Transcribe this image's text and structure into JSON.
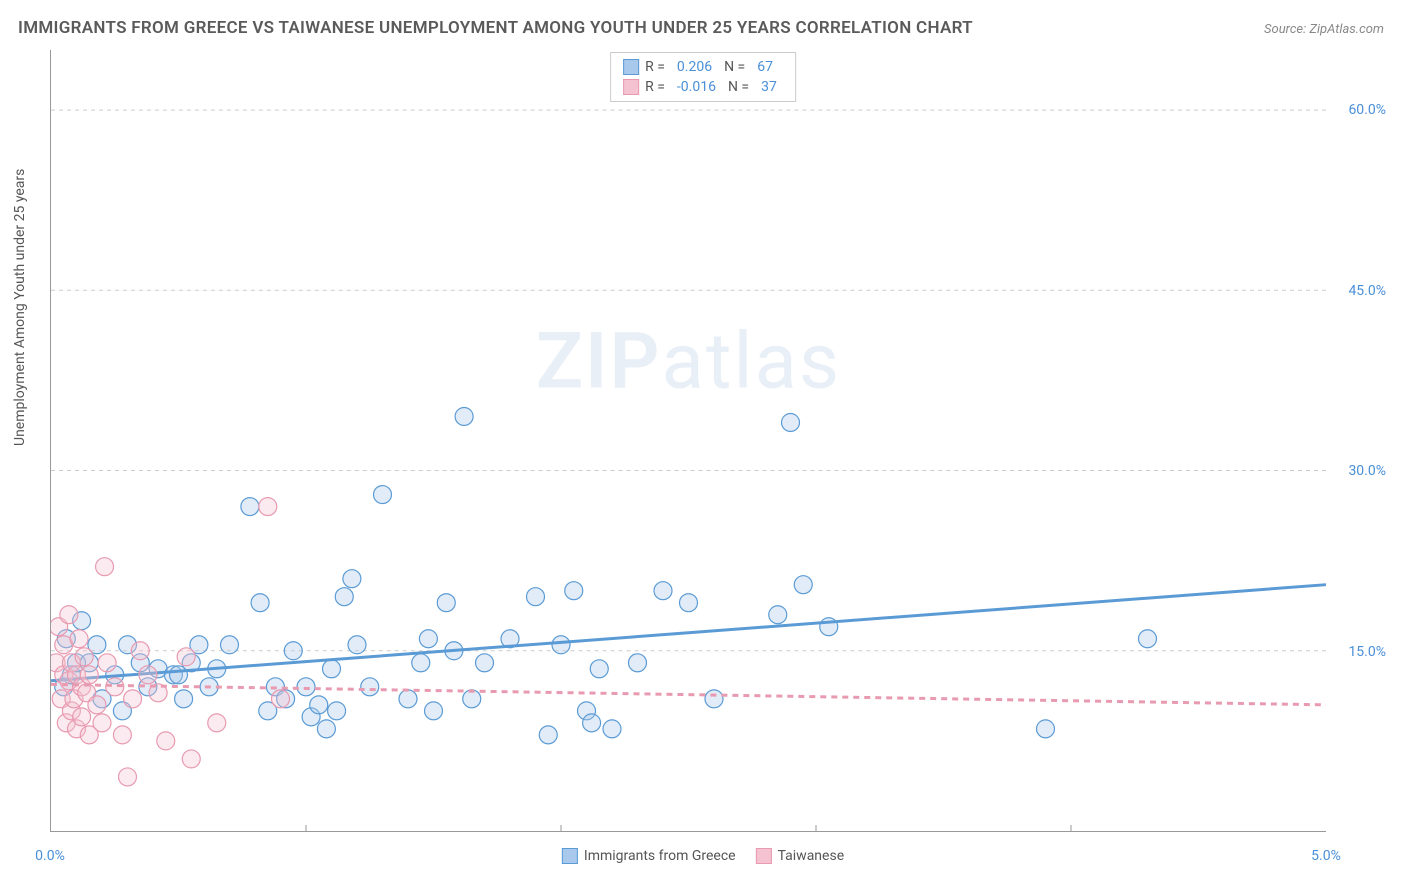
{
  "title": "IMMIGRANTS FROM GREECE VS TAIWANESE UNEMPLOYMENT AMONG YOUTH UNDER 25 YEARS CORRELATION CHART",
  "source": "Source: ZipAtlas.com",
  "y_axis_label": "Unemployment Among Youth under 25 years",
  "watermark": {
    "zip": "ZIP",
    "atlas": "atlas"
  },
  "chart": {
    "type": "scatter",
    "xlim": [
      0,
      5.0
    ],
    "ylim": [
      0,
      65
    ],
    "x_ticks": [
      {
        "v": 0,
        "label": "0.0%"
      },
      {
        "v": 5.0,
        "label": "5.0%"
      }
    ],
    "y_ticks": [
      {
        "v": 15,
        "label": "15.0%"
      },
      {
        "v": 30,
        "label": "30.0%"
      },
      {
        "v": 45,
        "label": "45.0%"
      },
      {
        "v": 60,
        "label": "60.0%"
      }
    ],
    "x_minor_ticks": [
      1.0,
      2.0,
      3.0,
      4.0
    ],
    "grid_color": "#cccccc",
    "grid_dash": "4,4",
    "background_color": "#ffffff",
    "marker_radius": 9,
    "marker_stroke_width": 1.2,
    "marker_fill_opacity": 0.35,
    "trend_line_width": 3,
    "series": [
      {
        "name": "Immigrants from Greece",
        "color_stroke": "#5b9bd5",
        "color_fill": "#a8c8ec",
        "R": "0.206",
        "N": "67",
        "trend": {
          "x1": 0,
          "y1": 12.5,
          "x2": 5.0,
          "y2": 20.5,
          "dashed": false
        },
        "points": [
          [
            0.05,
            12
          ],
          [
            0.06,
            16
          ],
          [
            0.08,
            13
          ],
          [
            0.1,
            14
          ],
          [
            0.12,
            17.5
          ],
          [
            0.15,
            14
          ],
          [
            0.18,
            15.5
          ],
          [
            0.2,
            11
          ],
          [
            0.25,
            13
          ],
          [
            0.28,
            10
          ],
          [
            0.3,
            15.5
          ],
          [
            0.35,
            14
          ],
          [
            0.38,
            12
          ],
          [
            0.42,
            13.5
          ],
          [
            0.48,
            13
          ],
          [
            0.5,
            13
          ],
          [
            0.52,
            11
          ],
          [
            0.55,
            14
          ],
          [
            0.58,
            15.5
          ],
          [
            0.62,
            12
          ],
          [
            0.65,
            13.5
          ],
          [
            0.7,
            15.5
          ],
          [
            0.78,
            27
          ],
          [
            0.82,
            19
          ],
          [
            0.85,
            10
          ],
          [
            0.88,
            12
          ],
          [
            0.92,
            11
          ],
          [
            0.95,
            15
          ],
          [
            1.0,
            12
          ],
          [
            1.02,
            9.5
          ],
          [
            1.05,
            10.5
          ],
          [
            1.08,
            8.5
          ],
          [
            1.1,
            13.5
          ],
          [
            1.12,
            10
          ],
          [
            1.15,
            19.5
          ],
          [
            1.18,
            21
          ],
          [
            1.2,
            15.5
          ],
          [
            1.25,
            12
          ],
          [
            1.3,
            28
          ],
          [
            1.4,
            11
          ],
          [
            1.45,
            14
          ],
          [
            1.48,
            16
          ],
          [
            1.5,
            10
          ],
          [
            1.55,
            19
          ],
          [
            1.58,
            15
          ],
          [
            1.62,
            34.5
          ],
          [
            1.65,
            11
          ],
          [
            1.7,
            14
          ],
          [
            1.8,
            16
          ],
          [
            1.9,
            19.5
          ],
          [
            1.95,
            8
          ],
          [
            2.0,
            15.5
          ],
          [
            2.05,
            20
          ],
          [
            2.1,
            10
          ],
          [
            2.12,
            9
          ],
          [
            2.15,
            13.5
          ],
          [
            2.2,
            8.5
          ],
          [
            2.3,
            14
          ],
          [
            2.4,
            20
          ],
          [
            2.5,
            19
          ],
          [
            2.6,
            11
          ],
          [
            2.85,
            18
          ],
          [
            2.9,
            34
          ],
          [
            2.95,
            20.5
          ],
          [
            3.05,
            17
          ],
          [
            3.9,
            8.5
          ],
          [
            4.3,
            16
          ]
        ]
      },
      {
        "name": "Taiwanese",
        "color_stroke": "#e89ab0",
        "color_fill": "#f4c2d0",
        "R": "-0.016",
        "N": "37",
        "trend": {
          "x1": 0,
          "y1": 12.2,
          "x2": 5.0,
          "y2": 10.5,
          "dashed": true
        },
        "points": [
          [
            0.02,
            14
          ],
          [
            0.03,
            17
          ],
          [
            0.04,
            11
          ],
          [
            0.05,
            13
          ],
          [
            0.05,
            15.5
          ],
          [
            0.06,
            9
          ],
          [
            0.07,
            12.5
          ],
          [
            0.07,
            18
          ],
          [
            0.08,
            10
          ],
          [
            0.08,
            14
          ],
          [
            0.09,
            11
          ],
          [
            0.1,
            8.5
          ],
          [
            0.1,
            13
          ],
          [
            0.11,
            16
          ],
          [
            0.12,
            12
          ],
          [
            0.12,
            9.5
          ],
          [
            0.13,
            14.5
          ],
          [
            0.14,
            11.5
          ],
          [
            0.15,
            8
          ],
          [
            0.15,
            13
          ],
          [
            0.18,
            10.5
          ],
          [
            0.2,
            9
          ],
          [
            0.21,
            22
          ],
          [
            0.22,
            14
          ],
          [
            0.25,
            12
          ],
          [
            0.28,
            8
          ],
          [
            0.3,
            4.5
          ],
          [
            0.32,
            11
          ],
          [
            0.35,
            15
          ],
          [
            0.38,
            13
          ],
          [
            0.42,
            11.5
          ],
          [
            0.45,
            7.5
          ],
          [
            0.53,
            14.5
          ],
          [
            0.55,
            6
          ],
          [
            0.65,
            9
          ],
          [
            0.85,
            27
          ],
          [
            0.9,
            11
          ]
        ]
      }
    ]
  },
  "legend_top": {
    "r_label": "R =",
    "n_label": "N ="
  },
  "legend_bottom": [
    {
      "label": "Immigrants from Greece",
      "series_idx": 0
    },
    {
      "label": "Taiwanese",
      "series_idx": 1
    }
  ]
}
